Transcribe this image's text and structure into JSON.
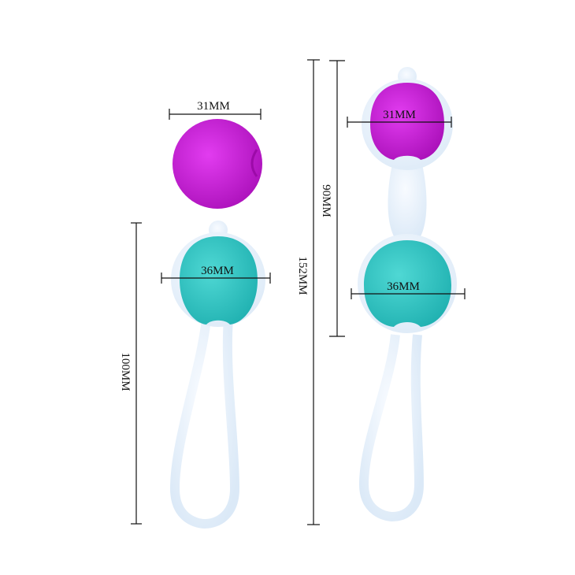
{
  "colors": {
    "purple": "#c81ad6",
    "teal": "#2fc7c4",
    "silicone": "#e8f2fb",
    "dimension_line": "#111111"
  },
  "single_ball": {
    "diameter_label": "31MM"
  },
  "single_set": {
    "ball_diameter_label": "36MM",
    "length_label": "100MM"
  },
  "double_set": {
    "top_ball_diameter_label": "31MM",
    "bottom_ball_diameter_label": "36MM",
    "balls_length_label": "90MM",
    "total_length_label": "152MM"
  }
}
